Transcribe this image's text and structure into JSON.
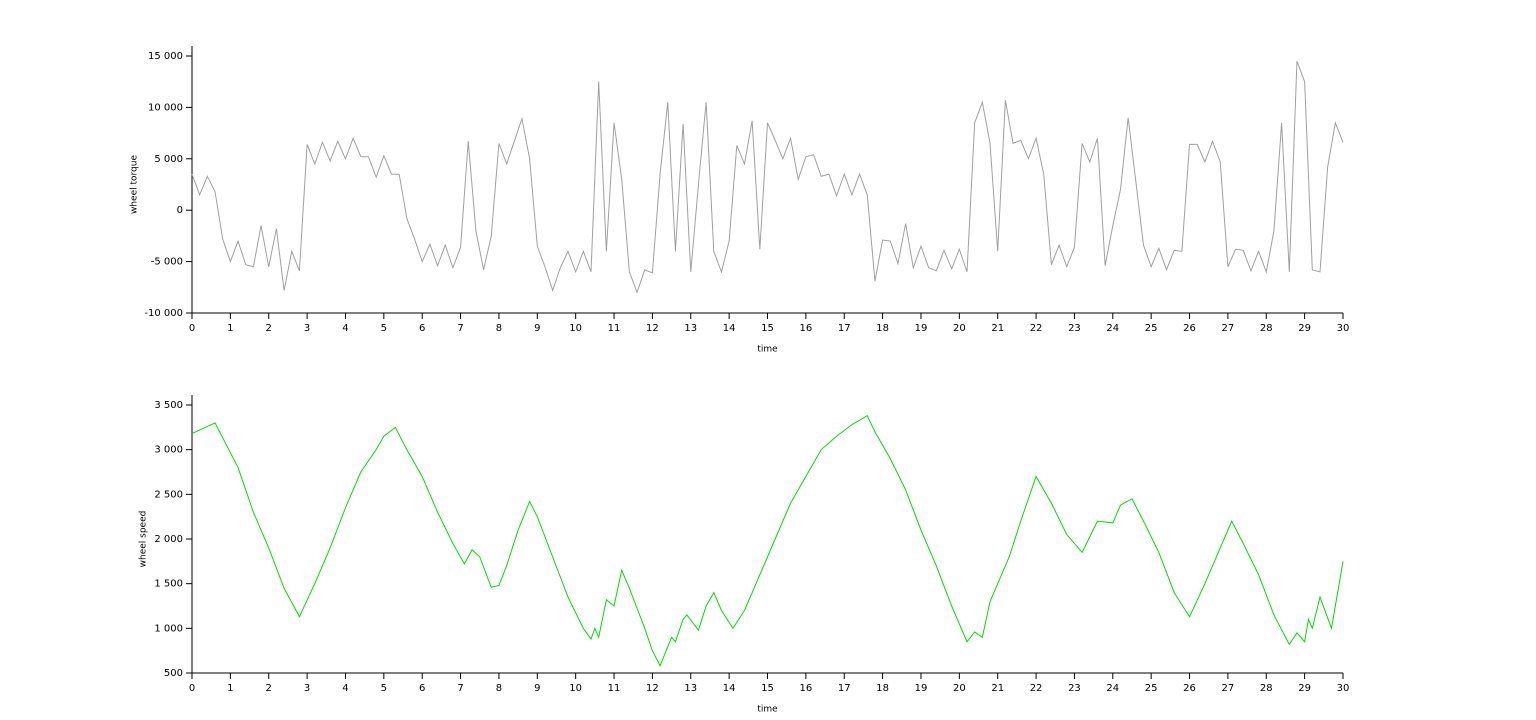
{
  "chart_data": [
    {
      "type": "line",
      "ylabel": "wheel torque",
      "xlabel": "time",
      "color": "#a0a0a0",
      "x": [
        0,
        0.2,
        0.4,
        0.6,
        0.8,
        1,
        1.2,
        1.4,
        1.6,
        1.8,
        2,
        2.2,
        2.4,
        2.6,
        2.8,
        3,
        3.2,
        3.4,
        3.6,
        3.8,
        4,
        4.2,
        4.4,
        4.6,
        4.8,
        5,
        5.2,
        5.4,
        5.6,
        5.8,
        6,
        6.2,
        6.4,
        6.6,
        6.8,
        7,
        7.2,
        7.4,
        7.6,
        7.8,
        8,
        8.2,
        8.4,
        8.6,
        8.8,
        9,
        9.2,
        9.4,
        9.6,
        9.8,
        10,
        10.2,
        10.4,
        10.6,
        10.8,
        11,
        11.2,
        11.4,
        11.6,
        11.8,
        12,
        12.2,
        12.4,
        12.6,
        12.8,
        13,
        13.2,
        13.4,
        13.6,
        13.8,
        14,
        14.2,
        14.4,
        14.6,
        14.8,
        15,
        15.2,
        15.4,
        15.6,
        15.8,
        16,
        16.2,
        16.4,
        16.6,
        16.8,
        17,
        17.2,
        17.4,
        17.6,
        17.8,
        18,
        18.2,
        18.4,
        18.6,
        18.8,
        19,
        19.2,
        19.4,
        19.6,
        19.8,
        20,
        20.2,
        20.4,
        20.6,
        20.8,
        21,
        21.2,
        21.4,
        21.6,
        21.8,
        22,
        22.2,
        22.4,
        22.6,
        22.8,
        23,
        23.2,
        23.4,
        23.6,
        23.8,
        24,
        24.2,
        24.4,
        24.6,
        24.8,
        25,
        25.2,
        25.4,
        25.6,
        25.8,
        26,
        26.2,
        26.4,
        26.6,
        26.8,
        27,
        27.2,
        27.4,
        27.6,
        27.8,
        28,
        28.2,
        28.4,
        28.6,
        28.8,
        29,
        29.2,
        29.4,
        29.6,
        29.8,
        30
      ],
      "values": [
        3500,
        1500,
        3300,
        1800,
        -2800,
        -5000,
        -3000,
        -5300,
        -5500,
        -1500,
        -5500,
        -1800,
        -7800,
        -4000,
        -5900,
        6400,
        4500,
        6600,
        4800,
        6700,
        5000,
        7000,
        5200,
        5200,
        3200,
        5300,
        3500,
        3500,
        -800,
        -2800,
        -5000,
        -3300,
        -5400,
        -3400,
        -5600,
        -3600,
        6700,
        -2000,
        -5800,
        -2500,
        6500,
        4500,
        6700,
        8900,
        5000,
        -3500,
        -5500,
        -7800,
        -5600,
        -4000,
        -6000,
        -4000,
        -6000,
        12500,
        -4000,
        8500,
        3000,
        -6000,
        -8000,
        -5800,
        -6100,
        3500,
        10500,
        -4000,
        8400,
        -6000,
        2500,
        10500,
        -4000,
        -6000,
        -3000,
        6300,
        4500,
        8700,
        -3800,
        8500,
        6800,
        5000,
        7000,
        3000,
        5200,
        5400,
        3300,
        3500,
        1400,
        3500,
        1500,
        3500,
        1500,
        -6900,
        -2900,
        -3000,
        -5200,
        -1300,
        -5600,
        -3500,
        -5600,
        -5900,
        -3900,
        -5700,
        -3800,
        -6000,
        8500,
        10500,
        6500,
        -4000,
        10700,
        6500,
        6800,
        5000,
        7000,
        3500,
        -5300,
        -3400,
        -5500,
        -3600,
        6500,
        4700,
        7000,
        -5400,
        -1500,
        2000,
        9000,
        2800,
        -3400,
        -5500,
        -3700,
        -5800,
        -3900,
        -4000,
        6400,
        6400,
        4700,
        6700,
        4700,
        -5500,
        -3800,
        -3900,
        -5900,
        -4000,
        -6000,
        -2000,
        8500,
        -6000,
        14500,
        12500,
        -5800,
        -6000,
        4200,
        8500,
        6600
      ],
      "xlim": [
        0,
        30
      ],
      "xticks": [
        0,
        1,
        2,
        3,
        4,
        5,
        6,
        7,
        8,
        9,
        10,
        11,
        12,
        13,
        14,
        15,
        16,
        17,
        18,
        19,
        20,
        21,
        22,
        23,
        24,
        25,
        26,
        27,
        28,
        29,
        30
      ],
      "ylim": [
        -10000,
        15000
      ],
      "yticks": [
        {
          "value": -10000,
          "label": "-10 000"
        },
        {
          "value": -5000,
          "label": "-5 000"
        },
        0,
        {
          "value": 5000,
          "label": "5 000"
        },
        {
          "value": 10000,
          "label": "10 000"
        },
        {
          "value": 15000,
          "label": "15 000"
        }
      ]
    },
    {
      "type": "line",
      "ylabel": "wheel speed",
      "xlabel": "time",
      "color": "#00dd00",
      "x": [
        0,
        0.6,
        1.2,
        1.6,
        2,
        2.4,
        2.8,
        3.2,
        3.6,
        4,
        4.4,
        4.8,
        5,
        5.3,
        5.6,
        6,
        6.4,
        6.8,
        7.1,
        7.3,
        7.5,
        7.8,
        8,
        8.2,
        8.5,
        8.8,
        9,
        9.4,
        9.8,
        10.2,
        10.4,
        10.5,
        10.6,
        10.8,
        11,
        11.2,
        11.4,
        11.8,
        12,
        12.2,
        12.5,
        12.6,
        12.8,
        12.9,
        13.2,
        13.4,
        13.6,
        13.8,
        14.1,
        14.4,
        14.8,
        15.2,
        15.6,
        16,
        16.4,
        16.8,
        17.2,
        17.6,
        17.8,
        18.2,
        18.6,
        19,
        19.4,
        19.8,
        20.2,
        20.4,
        20.6,
        20.8,
        21,
        21.3,
        21.6,
        22,
        22.4,
        22.8,
        23.2,
        23.6,
        24,
        24.2,
        24.5,
        24.8,
        25.2,
        25.6,
        26,
        26.4,
        26.8,
        27.1,
        27.4,
        27.8,
        28.2,
        28.6,
        28.8,
        29,
        29.1,
        29.2,
        29.4,
        29.7,
        30
      ],
      "values": [
        3180,
        3300,
        2800,
        2300,
        1900,
        1450,
        1130,
        1500,
        1900,
        2350,
        2750,
        3000,
        3150,
        3250,
        3000,
        2700,
        2300,
        1950,
        1720,
        1880,
        1800,
        1460,
        1480,
        1700,
        2100,
        2420,
        2250,
        1800,
        1350,
        1000,
        880,
        1000,
        900,
        1320,
        1250,
        1650,
        1450,
        1000,
        750,
        580,
        900,
        850,
        1100,
        1150,
        980,
        1250,
        1400,
        1200,
        1000,
        1200,
        1600,
        2000,
        2400,
        2700,
        3000,
        3150,
        3280,
        3380,
        3200,
        2900,
        2550,
        2100,
        1700,
        1250,
        850,
        960,
        900,
        1300,
        1500,
        1800,
        2200,
        2700,
        2400,
        2050,
        1850,
        2200,
        2180,
        2380,
        2450,
        2200,
        1850,
        1400,
        1130,
        1500,
        1900,
        2200,
        1950,
        1600,
        1150,
        820,
        950,
        850,
        1100,
        1000,
        1350,
        1000,
        1750
      ],
      "xlim": [
        0,
        30
      ],
      "xticks": [
        0,
        1,
        2,
        3,
        4,
        5,
        6,
        7,
        8,
        9,
        10,
        11,
        12,
        13,
        14,
        15,
        16,
        17,
        18,
        19,
        20,
        21,
        22,
        23,
        24,
        25,
        26,
        27,
        28,
        29,
        30
      ],
      "ylim": [
        500,
        3500
      ],
      "yticks": [
        500,
        {
          "value": 1000,
          "label": "1 000"
        },
        {
          "value": 1500,
          "label": "1 500"
        },
        {
          "value": 2000,
          "label": "2 000"
        },
        {
          "value": 2500,
          "label": "2 500"
        },
        {
          "value": 3000,
          "label": "3 000"
        },
        {
          "value": 3500,
          "label": "3 500"
        }
      ]
    }
  ]
}
